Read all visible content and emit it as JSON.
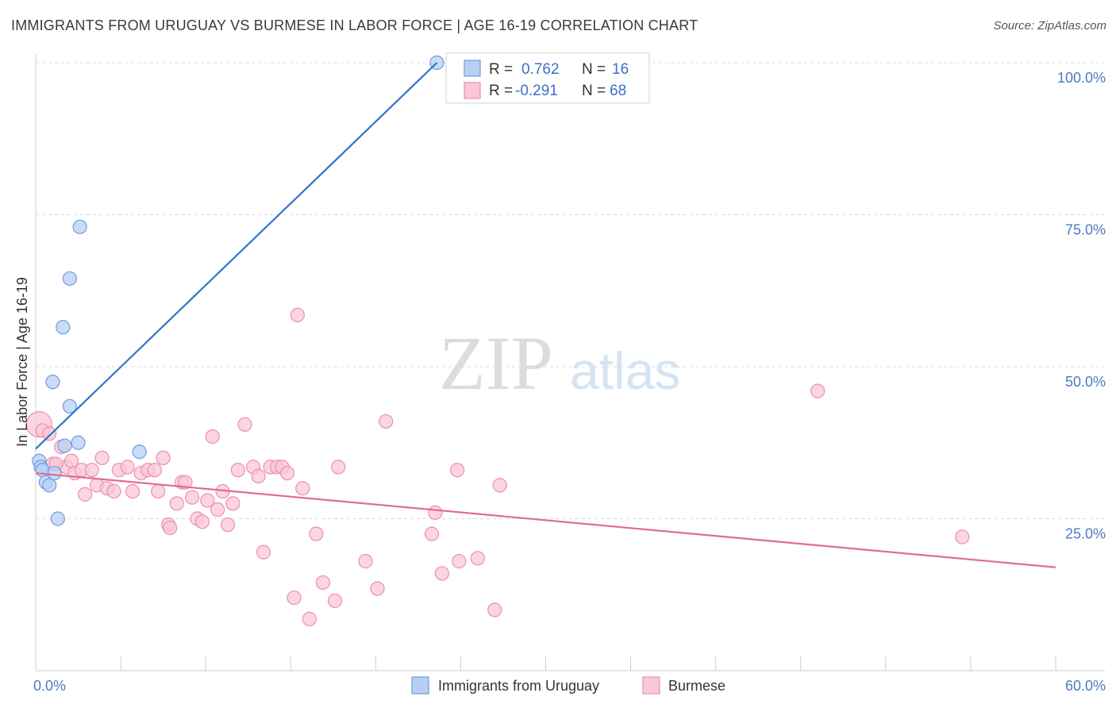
{
  "header": {
    "title": "IMMIGRANTS FROM URUGUAY VS BURMESE IN LABOR FORCE | AGE 16-19 CORRELATION CHART",
    "source": "Source: ZipAtlas.com"
  },
  "watermark": {
    "zip": "ZIP",
    "atlas": "atlas"
  },
  "legend": {
    "rows": [
      {
        "r_label": "R =",
        "r_value": "0.762",
        "n_label": "N =",
        "n_value": "16"
      },
      {
        "r_label": "R =",
        "r_value": "-0.291",
        "n_label": "N =",
        "n_value": "68"
      }
    ]
  },
  "colors": {
    "uruguay_fill": "#b7cff3",
    "uruguay_stroke": "#6f9be0",
    "uruguay_line": "#2f74d0",
    "burmese_fill": "#f9c7d6",
    "burmese_stroke": "#ec8fac",
    "burmese_line": "#e06b95",
    "grid": "#d9d9d9",
    "tick_text": "#4a7bc4"
  },
  "chart_data": {
    "type": "scatter",
    "title": "IMMIGRANTS FROM URUGUAY VS BURMESE IN LABOR FORCE | AGE 16-19 CORRELATION CHART",
    "xlabel": "",
    "ylabel": "In Labor Force | Age 16-19",
    "xlim": [
      0,
      60
    ],
    "ylim": [
      0,
      105
    ],
    "x_tick_labels": [
      "0.0%",
      "60.0%"
    ],
    "y_ticks": [
      25,
      50,
      75,
      100
    ],
    "y_tick_labels": [
      "25.0%",
      "50.0%",
      "75.0%",
      "100.0%"
    ],
    "grid": true,
    "legend_position": "top-center",
    "series": [
      {
        "name": "Immigrants from Uruguay",
        "points": [
          [
            0.2,
            34.5
          ],
          [
            0.3,
            33.5
          ],
          [
            0.4,
            33.0
          ],
          [
            0.6,
            31.0
          ],
          [
            0.8,
            30.5
          ],
          [
            1.1,
            32.5
          ],
          [
            1.3,
            25.0
          ],
          [
            1.6,
            56.5
          ],
          [
            1.7,
            37.0
          ],
          [
            2.0,
            43.5
          ],
          [
            2.0,
            64.5
          ],
          [
            1.0,
            47.5
          ],
          [
            2.5,
            37.5
          ],
          [
            2.6,
            73.0
          ],
          [
            6.1,
            36.0
          ],
          [
            23.6,
            100.0
          ]
        ],
        "trend": {
          "x": [
            0,
            23.6
          ],
          "y": [
            36.5,
            100.0
          ]
        }
      },
      {
        "name": "Burmese",
        "points": [
          [
            0.2,
            40.5
          ],
          [
            0.4,
            39.5
          ],
          [
            0.8,
            39.0
          ],
          [
            1.0,
            34.0
          ],
          [
            1.5,
            36.8
          ],
          [
            1.8,
            33.5
          ],
          [
            2.1,
            34.5
          ],
          [
            2.3,
            32.5
          ],
          [
            2.7,
            33.0
          ],
          [
            2.9,
            29.0
          ],
          [
            3.3,
            33.0
          ],
          [
            3.6,
            30.5
          ],
          [
            3.9,
            35.0
          ],
          [
            4.2,
            30.0
          ],
          [
            4.6,
            29.5
          ],
          [
            4.9,
            33.0
          ],
          [
            5.4,
            33.5
          ],
          [
            5.7,
            29.5
          ],
          [
            6.2,
            32.5
          ],
          [
            6.6,
            33.0
          ],
          [
            7.0,
            33.0
          ],
          [
            7.2,
            29.5
          ],
          [
            7.5,
            35.0
          ],
          [
            7.8,
            24.0
          ],
          [
            7.9,
            23.5
          ],
          [
            8.3,
            27.5
          ],
          [
            8.6,
            31.0
          ],
          [
            8.8,
            31.0
          ],
          [
            9.2,
            28.5
          ],
          [
            9.5,
            25.0
          ],
          [
            9.8,
            24.5
          ],
          [
            10.1,
            28.0
          ],
          [
            10.4,
            38.5
          ],
          [
            10.7,
            26.5
          ],
          [
            11.0,
            29.5
          ],
          [
            11.3,
            24.0
          ],
          [
            11.6,
            27.5
          ],
          [
            11.9,
            33.0
          ],
          [
            12.3,
            40.5
          ],
          [
            12.8,
            33.5
          ],
          [
            13.1,
            32.0
          ],
          [
            13.4,
            19.5
          ],
          [
            13.8,
            33.5
          ],
          [
            14.2,
            33.5
          ],
          [
            14.5,
            33.5
          ],
          [
            14.8,
            32.5
          ],
          [
            15.2,
            12.0
          ],
          [
            15.4,
            58.5
          ],
          [
            15.7,
            30.0
          ],
          [
            16.1,
            8.5
          ],
          [
            16.5,
            22.5
          ],
          [
            16.9,
            14.5
          ],
          [
            17.6,
            11.5
          ],
          [
            17.8,
            33.5
          ],
          [
            19.4,
            18.0
          ],
          [
            20.1,
            13.5
          ],
          [
            20.6,
            41.0
          ],
          [
            23.3,
            22.5
          ],
          [
            23.5,
            26.0
          ],
          [
            23.9,
            16.0
          ],
          [
            24.8,
            33.0
          ],
          [
            24.9,
            18.0
          ],
          [
            26.0,
            18.5
          ],
          [
            27.0,
            10.0
          ],
          [
            27.3,
            30.5
          ],
          [
            46.0,
            46.0
          ],
          [
            54.5,
            22.0
          ],
          [
            1.2,
            34.0
          ]
        ],
        "trend": {
          "x": [
            0,
            60
          ],
          "y": [
            32.5,
            17.0
          ]
        }
      }
    ]
  },
  "bottom_legend": {
    "items": [
      {
        "label": "Immigrants from Uruguay"
      },
      {
        "label": "Burmese"
      }
    ]
  }
}
